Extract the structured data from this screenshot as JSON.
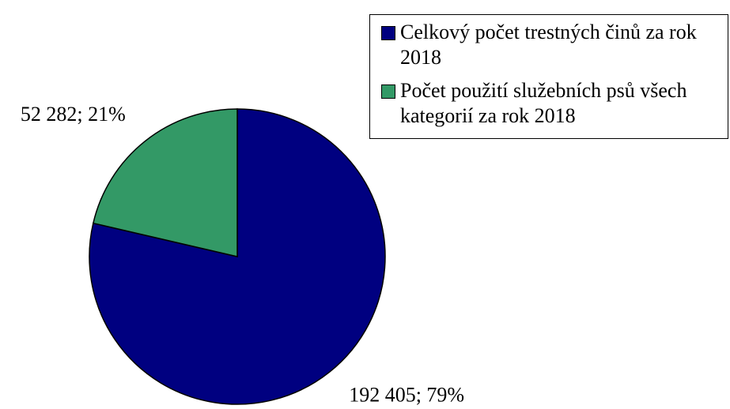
{
  "chart_data": {
    "type": "pie",
    "categories": [
      "Celkový počet trestných činů za rok 2018",
      "Počet použití služebních psů všech kategorií za rok 2018"
    ],
    "values": [
      192405,
      52282
    ],
    "value_labels": [
      "192 405; 79%",
      "52 282; 21%"
    ],
    "colors": [
      "#000080",
      "#339966"
    ],
    "legend": "top-right"
  }
}
